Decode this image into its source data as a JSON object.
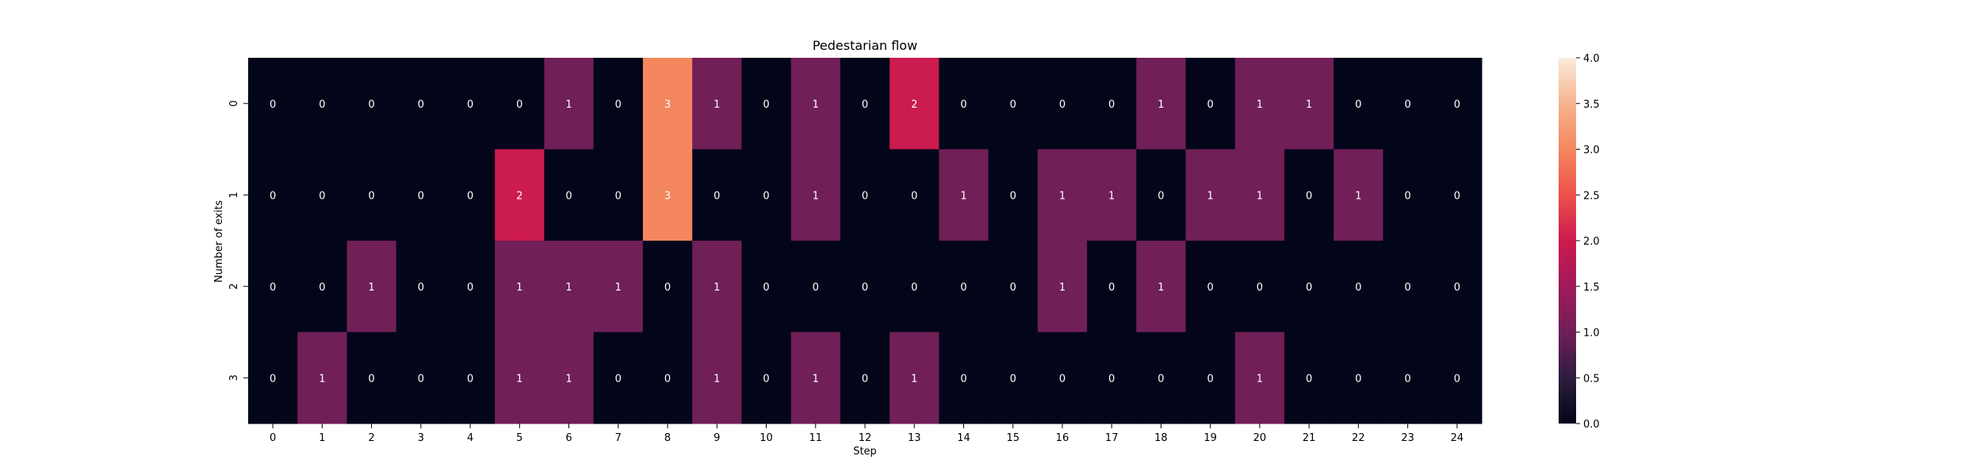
{
  "chart_data": {
    "type": "heatmap",
    "title": "Pedestarian flow",
    "xlabel": "Step",
    "ylabel": "Number of exits",
    "x_categories": [
      "0",
      "1",
      "2",
      "3",
      "4",
      "5",
      "6",
      "7",
      "8",
      "9",
      "10",
      "11",
      "12",
      "13",
      "14",
      "15",
      "16",
      "17",
      "18",
      "19",
      "20",
      "21",
      "22",
      "23",
      "24"
    ],
    "y_categories": [
      "0",
      "1",
      "2",
      "3"
    ],
    "values": [
      [
        0,
        0,
        0,
        0,
        0,
        0,
        1,
        0,
        3,
        1,
        0,
        1,
        0,
        2,
        0,
        0,
        0,
        0,
        1,
        0,
        1,
        1,
        0,
        0,
        0
      ],
      [
        0,
        0,
        0,
        0,
        0,
        2,
        0,
        0,
        3,
        0,
        0,
        1,
        0,
        0,
        1,
        0,
        1,
        1,
        0,
        1,
        1,
        0,
        1,
        0,
        0
      ],
      [
        0,
        0,
        1,
        0,
        0,
        1,
        1,
        1,
        0,
        1,
        0,
        0,
        0,
        0,
        0,
        0,
        1,
        0,
        1,
        0,
        0,
        0,
        0,
        0,
        0
      ],
      [
        0,
        1,
        0,
        0,
        0,
        1,
        1,
        0,
        0,
        1,
        0,
        1,
        0,
        1,
        0,
        0,
        0,
        0,
        0,
        0,
        1,
        0,
        0,
        0,
        0
      ]
    ],
    "colorbar": {
      "min": 0,
      "max": 4,
      "ticks": [
        "0.0",
        "0.5",
        "1.0",
        "1.5",
        "2.0",
        "2.5",
        "3.0",
        "3.5",
        "4.0"
      ],
      "colormap": "rocket",
      "colors": {
        "0": "#03051a",
        "1": "#701f57",
        "2": "#cb1b4f",
        "3": "#f4875e",
        "4": "#faebdd"
      }
    },
    "annotation_colors": {
      "light": "#ffffff"
    },
    "grid": false
  }
}
